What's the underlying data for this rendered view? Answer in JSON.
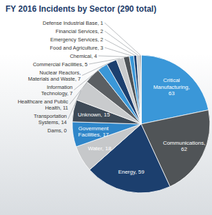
{
  "chart_data": {
    "type": "pie",
    "title": "FY 2016 Incidents by Sector (290 total)",
    "categories": [
      "Critical Manufacturing",
      "Communications",
      "Energy",
      "Water",
      "Government Facilities",
      "Unknown",
      "Transportation Systems",
      "Healthcare and Public Health",
      "Information Technology",
      "Nuclear Reactors, Materials and Waste",
      "Commercial Facilities",
      "Chemical",
      "Food and Agriculture",
      "Emergency Services",
      "Financial Services",
      "Defense Industrial Base",
      "Dams"
    ],
    "values": [
      63,
      62,
      59,
      18,
      17,
      15,
      14,
      11,
      7,
      7,
      5,
      4,
      3,
      2,
      2,
      1,
      0
    ],
    "colors": [
      "#3a97d8",
      "#505457",
      "#1c3f6e",
      "#c6c8ca",
      "#2f86c9",
      "#3e4a57",
      "#c9cbcd",
      "#5b5f63",
      "#3a97d8",
      "#1c3f6e",
      "#c9cbcd",
      "#4d5257",
      "#3a97d8",
      "#1c3f6e",
      "#c9cbcd",
      "#5b5f63",
      "#3a97d8"
    ],
    "data_labels": true
  }
}
